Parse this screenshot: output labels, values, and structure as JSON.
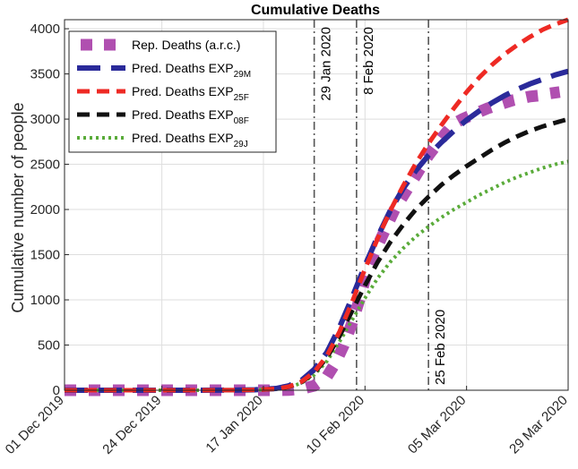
{
  "chart_data": {
    "type": "line",
    "title": "Cumulative Deaths",
    "xlabel": "",
    "ylabel": "Cumulative number of people",
    "xlim": [
      0,
      119
    ],
    "ylim": [
      0,
      4100
    ],
    "yticks": [
      0,
      500,
      1000,
      1500,
      2000,
      2500,
      3000,
      3500,
      4000
    ],
    "xticks": [
      {
        "day": 0,
        "label": "01 Dec 2019"
      },
      {
        "day": 23,
        "label": "24 Dec 2019"
      },
      {
        "day": 47,
        "label": "17 Jan 2020"
      },
      {
        "day": 71,
        "label": "10 Feb 2020"
      },
      {
        "day": 95,
        "label": "05 Mar 2020"
      },
      {
        "day": 119,
        "label": "29 Mar 2020"
      }
    ],
    "vlines": [
      {
        "day": 59,
        "label": "29 Jan 2020"
      },
      {
        "day": 69,
        "label": "8 Feb 2020"
      },
      {
        "day": 86,
        "label": "25 Feb 2020"
      }
    ],
    "grid": true,
    "legend_position": "top-left",
    "series": [
      {
        "name": "Rep. Deaths (a.r.c.)",
        "color": "#b04fb0",
        "style": "squares",
        "x": [
          0,
          6,
          12,
          18,
          24,
          30,
          36,
          42,
          48,
          53,
          56,
          59,
          62,
          64,
          66,
          68,
          70,
          72,
          74,
          76,
          78,
          80,
          82,
          84,
          86,
          88,
          90,
          92,
          94,
          96,
          98,
          100,
          102,
          104,
          106,
          108,
          110,
          112,
          114,
          117
        ],
        "values": [
          0,
          0,
          0,
          0,
          0,
          0,
          0,
          0,
          0,
          2,
          15,
          50,
          150,
          300,
          500,
          750,
          1050,
          1400,
          1600,
          1800,
          2000,
          2150,
          2300,
          2450,
          2600,
          2720,
          2840,
          2950,
          3000,
          3040,
          3080,
          3120,
          3150,
          3180,
          3210,
          3230,
          3250,
          3260,
          3280,
          3300
        ]
      },
      {
        "name": "Pred. Deaths EXP",
        "sub": "29M",
        "color": "#2a2a9a",
        "style": "longdash",
        "x": [
          0,
          10,
          20,
          30,
          40,
          45,
          50,
          53,
          56,
          59,
          62,
          65,
          68,
          71,
          74,
          77,
          80,
          83,
          86,
          89,
          92,
          95,
          98,
          101,
          104,
          107,
          110,
          113,
          116,
          119
        ],
        "values": [
          0,
          0,
          0,
          0,
          1,
          5,
          20,
          50,
          110,
          230,
          420,
          700,
          1030,
          1380,
          1700,
          1990,
          2230,
          2430,
          2600,
          2740,
          2870,
          2990,
          3090,
          3180,
          3260,
          3330,
          3390,
          3440,
          3490,
          3530
        ]
      },
      {
        "name": "Pred. Deaths EXP",
        "sub": "25F",
        "color": "#ee2a24",
        "style": "dash",
        "x": [
          0,
          10,
          20,
          30,
          40,
          45,
          50,
          53,
          56,
          59,
          62,
          65,
          68,
          71,
          74,
          77,
          80,
          83,
          86,
          89,
          92,
          95,
          98,
          101,
          104,
          107,
          110,
          113,
          116,
          119
        ],
        "values": [
          0,
          0,
          0,
          0,
          1,
          4,
          16,
          40,
          95,
          200,
          380,
          650,
          980,
          1340,
          1680,
          1990,
          2260,
          2510,
          2730,
          2930,
          3120,
          3300,
          3460,
          3600,
          3720,
          3820,
          3910,
          3990,
          4050,
          4100
        ]
      },
      {
        "name": "Pred. Deaths EXP",
        "sub": "08F",
        "color": "#111111",
        "style": "dash",
        "x": [
          0,
          10,
          20,
          30,
          40,
          45,
          50,
          53,
          56,
          59,
          62,
          65,
          68,
          71,
          74,
          77,
          80,
          83,
          86,
          89,
          92,
          95,
          98,
          101,
          104,
          107,
          110,
          113,
          116,
          119
        ],
        "values": [
          0,
          0,
          0,
          0,
          1,
          4,
          15,
          38,
          90,
          190,
          360,
          600,
          880,
          1160,
          1420,
          1640,
          1830,
          2000,
          2140,
          2270,
          2380,
          2480,
          2570,
          2660,
          2740,
          2810,
          2870,
          2920,
          2960,
          3000
        ]
      },
      {
        "name": "Pred. Deaths EXP",
        "sub": "29J",
        "color": "#5aab3a",
        "style": "dot",
        "x": [
          0,
          10,
          20,
          30,
          40,
          45,
          50,
          53,
          56,
          59,
          62,
          65,
          68,
          71,
          74,
          77,
          80,
          83,
          86,
          89,
          92,
          95,
          98,
          101,
          104,
          107,
          110,
          113,
          116,
          119
        ],
        "values": [
          0,
          0,
          0,
          0,
          1,
          3,
          12,
          32,
          80,
          170,
          320,
          540,
          780,
          1020,
          1240,
          1420,
          1570,
          1700,
          1810,
          1910,
          2000,
          2080,
          2160,
          2230,
          2300,
          2360,
          2410,
          2460,
          2500,
          2530
        ]
      }
    ]
  }
}
